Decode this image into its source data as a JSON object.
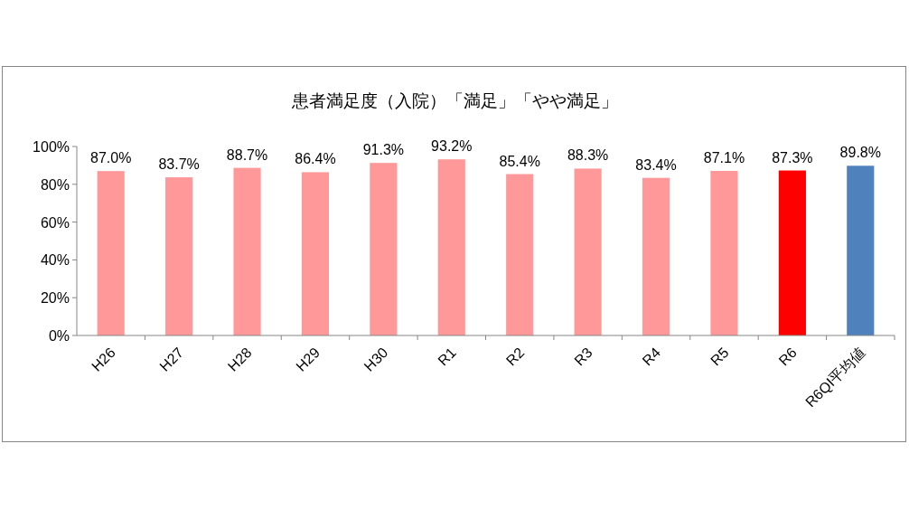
{
  "chart_data": {
    "type": "bar",
    "title": "患者満足度（入院）「満足」「やや満足」",
    "categories": [
      "H26",
      "H27",
      "H28",
      "H29",
      "H30",
      "R1",
      "R2",
      "R3",
      "R4",
      "R5",
      "R6",
      "R6QI平均値"
    ],
    "values": [
      87.0,
      83.7,
      88.7,
      86.4,
      91.3,
      93.2,
      85.4,
      88.3,
      83.4,
      87.1,
      87.3,
      89.8
    ],
    "colors": [
      "#ff9999",
      "#ff9999",
      "#ff9999",
      "#ff9999",
      "#ff9999",
      "#ff9999",
      "#ff9999",
      "#ff9999",
      "#ff9999",
      "#ff9999",
      "#ff0000",
      "#4f81bd"
    ],
    "value_labels": [
      "87.0%",
      "83.7%",
      "88.7%",
      "86.4%",
      "91.3%",
      "93.2%",
      "85.4%",
      "88.3%",
      "83.4%",
      "87.1%",
      "87.3%",
      "89.8%"
    ],
    "ylim": [
      0,
      100
    ],
    "yticks": [
      {
        "value": 0,
        "label": "0%"
      },
      {
        "value": 20,
        "label": "20%"
      },
      {
        "value": 40,
        "label": "40%"
      },
      {
        "value": 60,
        "label": "60%"
      },
      {
        "value": 80,
        "label": "80%"
      },
      {
        "value": 100,
        "label": "100%"
      }
    ],
    "grid": false
  }
}
